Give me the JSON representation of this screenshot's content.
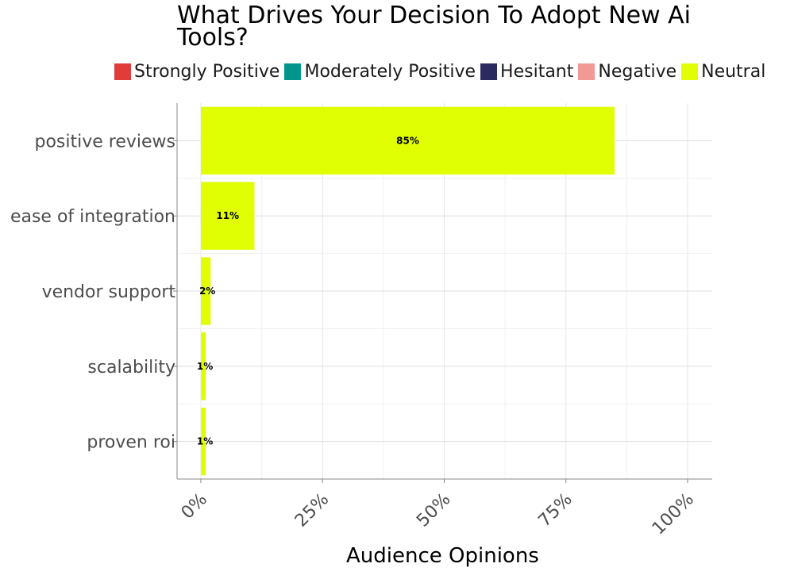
{
  "title": "What Drives Your Decision To Adopt New Ai Tools?",
  "legend": [
    {
      "label": "Strongly Positive",
      "color": "#e03c3a"
    },
    {
      "label": "Moderately Positive",
      "color": "#00968e"
    },
    {
      "label": "Hesitant",
      "color": "#2a2a5e"
    },
    {
      "label": "Negative",
      "color": "#f09a96"
    },
    {
      "label": "Neutral",
      "color": "#e0ff00"
    }
  ],
  "chart_data": {
    "type": "bar",
    "orientation": "horizontal",
    "title": "What Drives Your Decision To Adopt New Ai Tools?",
    "xlabel": "Audience Opinions",
    "ylabel": "",
    "categories": [
      "positive reviews",
      "ease of integration",
      "vendor support",
      "scalability",
      "proven roi"
    ],
    "series": [
      {
        "name": "Neutral",
        "color": "#e0ff00",
        "values": [
          85,
          11,
          2,
          1,
          1
        ]
      }
    ],
    "data_labels": [
      "85%",
      "11%",
      "2%",
      "1%",
      "1%"
    ],
    "xticks": [
      "0%",
      "25%",
      "50%",
      "75%",
      "100%"
    ],
    "xlim": [
      0,
      100
    ],
    "grid": true,
    "legend_position": "top"
  }
}
